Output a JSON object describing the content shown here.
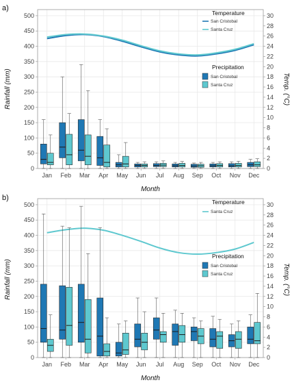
{
  "colors": {
    "san_cristobal": "#1f78b4",
    "santa_cruz": "#5ec8cf",
    "grid": "#e5e5e5",
    "axis": "#9a9a9a"
  },
  "chart_data": [
    {
      "panel": "a)",
      "type": "boxplot",
      "xlabel": "Month",
      "ylabel": "Rainfall (mm)",
      "y2label": "Temp. (°C)",
      "ylim": [
        0,
        520
      ],
      "y2lim": [
        0,
        31.2
      ],
      "yticks": [
        0,
        50,
        100,
        150,
        200,
        250,
        300,
        350,
        400,
        450,
        500
      ],
      "y2ticks": [
        0,
        2,
        4,
        6,
        8,
        10,
        12,
        14,
        16,
        18,
        20,
        22,
        24,
        26,
        28,
        30
      ],
      "grid": true,
      "categories": [
        "Jan",
        "Feb",
        "Mar",
        "Apr",
        "May",
        "Jun",
        "Jul",
        "Aug",
        "Sep",
        "Oct",
        "Nov",
        "Dec"
      ],
      "legend_temperature": {
        "title": "Temperature",
        "placement": "top-right",
        "entries": [
          "San Cristobal",
          "Santa Cruz"
        ]
      },
      "legend_precipitation": {
        "title": "Precipitation",
        "placement": "right",
        "entries": [
          "San Cristobal",
          "Santa Cruz"
        ]
      },
      "temperature_series": [
        {
          "name": "San Cristobal",
          "values": [
            25.5,
            26.1,
            26.3,
            25.9,
            25.0,
            23.9,
            22.9,
            22.3,
            22.1,
            22.5,
            23.2,
            24.3
          ]
        },
        {
          "name": "Santa Cruz",
          "values": [
            25.8,
            26.3,
            26.4,
            26.0,
            25.2,
            24.1,
            23.1,
            22.5,
            22.3,
            22.7,
            23.4,
            24.5
          ]
        }
      ],
      "precipitation_series": [
        {
          "name": "San Cristobal",
          "boxes": [
            [
              0,
              15,
              30,
              80,
              160
            ],
            [
              0,
              35,
              70,
              150,
              300
            ],
            [
              0,
              25,
              60,
              160,
              340
            ],
            [
              0,
              10,
              35,
              105,
              160
            ],
            [
              0,
              5,
              12,
              20,
              45
            ],
            [
              0,
              5,
              10,
              15,
              20
            ],
            [
              0,
              6,
              10,
              16,
              22
            ],
            [
              0,
              5,
              9,
              15,
              20
            ],
            [
              0,
              4,
              8,
              14,
              18
            ],
            [
              0,
              5,
              9,
              15,
              20
            ],
            [
              0,
              5,
              9,
              16,
              22
            ],
            [
              0,
              6,
              12,
              20,
              30
            ]
          ]
        },
        {
          "name": "Santa Cruz",
          "boxes": [
            [
              0,
              12,
              20,
              50,
              110
            ],
            [
              0,
              12,
              45,
              112,
              180
            ],
            [
              0,
              12,
              40,
              110,
              255
            ],
            [
              0,
              5,
              20,
              77,
              130
            ],
            [
              0,
              5,
              15,
              40,
              85
            ],
            [
              0,
              5,
              10,
              15,
              22
            ],
            [
              0,
              6,
              11,
              17,
              25
            ],
            [
              0,
              5,
              10,
              17,
              23
            ],
            [
              0,
              4,
              9,
              14,
              20
            ],
            [
              0,
              5,
              10,
              16,
              22
            ],
            [
              0,
              5,
              10,
              17,
              24
            ],
            [
              0,
              6,
              12,
              22,
              32
            ]
          ]
        }
      ]
    },
    {
      "panel": "b)",
      "type": "boxplot",
      "xlabel": "Month",
      "ylabel": "Rainfall (mm)",
      "y2label": "Temp. (°C)",
      "ylim": [
        0,
        520
      ],
      "y2lim": [
        0,
        31.2
      ],
      "yticks": [
        0,
        50,
        100,
        150,
        200,
        250,
        300,
        350,
        400,
        450,
        500
      ],
      "y2ticks": [
        0,
        2,
        4,
        6,
        8,
        10,
        12,
        14,
        16,
        18,
        20,
        22,
        24,
        26,
        28,
        30
      ],
      "grid": true,
      "categories": [
        "Jan",
        "Feb",
        "Mar",
        "Apr",
        "May",
        "Jun",
        "Jul",
        "Aug",
        "Sep",
        "Oct",
        "Nov",
        "Dec"
      ],
      "legend_temperature": {
        "title": "Temperature",
        "placement": "top-right",
        "entries": [
          "Santa Cruz"
        ]
      },
      "legend_precipitation": {
        "title": "Precipitation",
        "placement": "right",
        "entries": [
          "San Cristobal",
          "Santa Cruz"
        ]
      },
      "temperature_series": [
        {
          "name": "Santa Cruz",
          "values": [
            24.5,
            25.1,
            25.4,
            25.0,
            24.0,
            22.8,
            21.5,
            20.6,
            20.3,
            20.6,
            21.3,
            22.6
          ]
        }
      ],
      "precipitation_series": [
        {
          "name": "San Cristobal",
          "boxes": [
            [
              0,
              50,
              95,
              240,
              470
            ],
            [
              0,
              60,
              90,
              235,
              430
            ],
            [
              0,
              50,
              115,
              240,
              495
            ],
            [
              0,
              5,
              70,
              195,
              425
            ],
            [
              0,
              5,
              15,
              50,
              110
            ],
            [
              0,
              35,
              60,
              110,
              195
            ],
            [
              0,
              60,
              90,
              130,
              195
            ],
            [
              0,
              40,
              85,
              110,
              155
            ],
            [
              0,
              55,
              85,
              100,
              130
            ],
            [
              0,
              35,
              60,
              95,
              135
            ],
            [
              0,
              35,
              55,
              75,
              110
            ],
            [
              0,
              45,
              60,
              100,
              140
            ]
          ]
        },
        {
          "name": "Santa Cruz",
          "boxes": [
            [
              0,
              20,
              40,
              60,
              140
            ],
            [
              0,
              40,
              105,
              230,
              425
            ],
            [
              0,
              15,
              60,
              190,
              340
            ],
            [
              0,
              5,
              20,
              45,
              130
            ],
            [
              0,
              10,
              25,
              80,
              120
            ],
            [
              0,
              25,
              50,
              80,
              150
            ],
            [
              0,
              50,
              75,
              85,
              145
            ],
            [
              0,
              50,
              75,
              105,
              145
            ],
            [
              0,
              45,
              70,
              95,
              120
            ],
            [
              0,
              30,
              70,
              85,
              125
            ],
            [
              0,
              30,
              60,
              85,
              120
            ],
            [
              0,
              45,
              55,
              115,
              210
            ]
          ]
        }
      ]
    }
  ]
}
